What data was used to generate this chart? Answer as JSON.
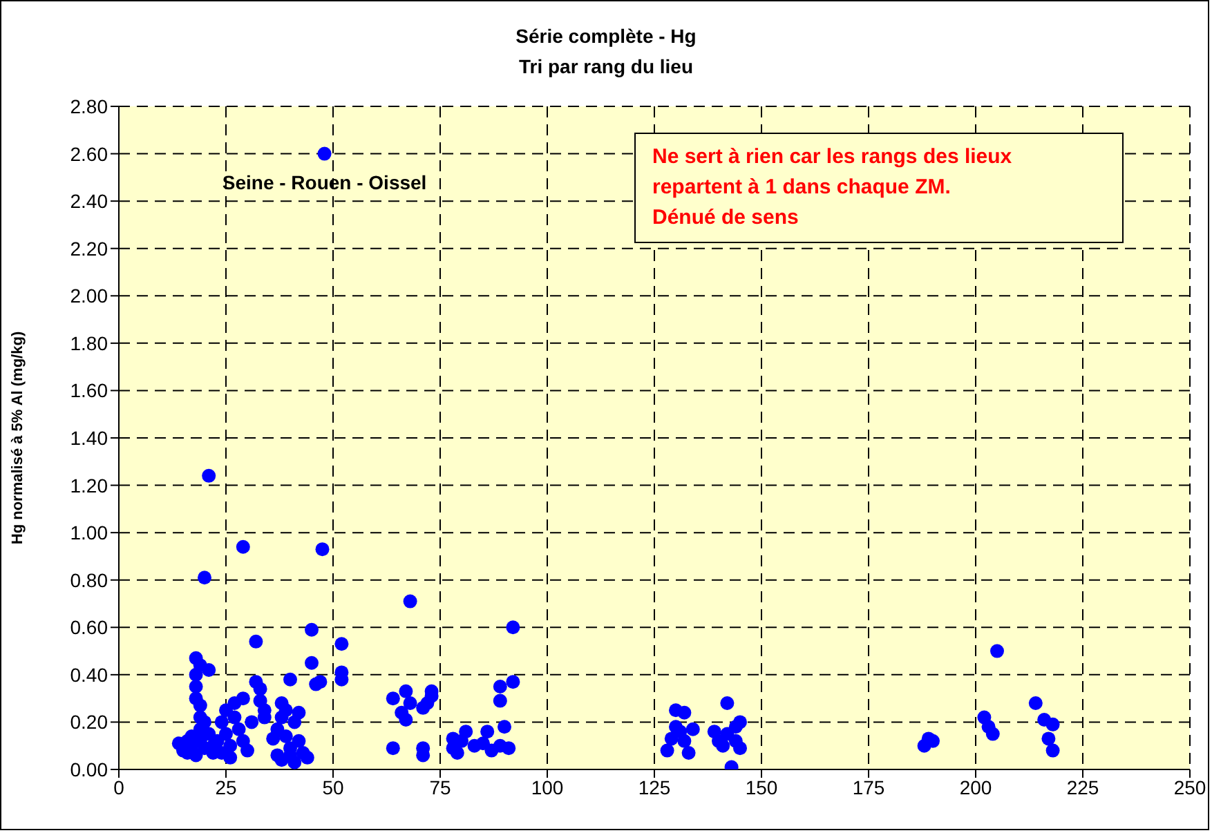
{
  "chart_data": {
    "type": "scatter",
    "title": "Série complète - Hg",
    "subtitle": "Tri par rang du lieu",
    "ylabel": "Hg normalisé à 5% Al (mg/kg)",
    "xlim": [
      0,
      250
    ],
    "xticks": [
      0,
      25,
      50,
      75,
      100,
      125,
      150,
      175,
      200,
      225,
      250
    ],
    "ylim": [
      0,
      2.8
    ],
    "yticks": [
      {
        "value": 0,
        "label": "0.00"
      },
      {
        "value": 0.2,
        "label": "0.20"
      },
      {
        "value": 0.4,
        "label": "0.40"
      },
      {
        "value": 0.6,
        "label": "0.60"
      },
      {
        "value": 0.8,
        "label": "0.80"
      },
      {
        "value": 1,
        "label": "1.00"
      },
      {
        "value": 1.2,
        "label": "1.20"
      },
      {
        "value": 1.4,
        "label": "1.40"
      },
      {
        "value": 1.6,
        "label": "1.60"
      },
      {
        "value": 1.8,
        "label": "1.80"
      },
      {
        "value": 2,
        "label": "2.00"
      },
      {
        "value": 2.2,
        "label": "2.20"
      },
      {
        "value": 2.4,
        "label": "2.40"
      },
      {
        "value": 2.6,
        "label": "2.60"
      },
      {
        "value": 2.8,
        "label": "2.80"
      }
    ],
    "grid": true,
    "marker": "circle",
    "legend": false,
    "annotations": [
      {
        "text": "Seine - Rouen - Oissel",
        "x": 48,
        "y": 2.6
      },
      "Ne sert à rien car les rangs des lieux repartent à 1 dans chaque ZM.\nDénué de sens"
    ],
    "series": [
      {
        "color": "#0000ff",
        "x": [
          48,
          21,
          20,
          29,
          47.5,
          32,
          45,
          52,
          68,
          92,
          205,
          14,
          15,
          16,
          16,
          17,
          17,
          18,
          18,
          18,
          18,
          18,
          19,
          19,
          19,
          19,
          19,
          20,
          20,
          21,
          21,
          22,
          22,
          23,
          24,
          24,
          25,
          25,
          26,
          26,
          27,
          27,
          28,
          29,
          29,
          30,
          31,
          32,
          33,
          33,
          34,
          34,
          36,
          37,
          37,
          38,
          38,
          38,
          39,
          39,
          40,
          40,
          40,
          41,
          41,
          42,
          42,
          43,
          44,
          45,
          46,
          47,
          52,
          52,
          64,
          64,
          66,
          67,
          67,
          68,
          71,
          71,
          71,
          72,
          73,
          73,
          78,
          78,
          79,
          80,
          81,
          83,
          85,
          86,
          87,
          89,
          89,
          89,
          90,
          91,
          92,
          128,
          129,
          130,
          130,
          131,
          132,
          132,
          133,
          134,
          139,
          140,
          141,
          142,
          142,
          143,
          144,
          144,
          145,
          145,
          188,
          189,
          190,
          202,
          203,
          204,
          214,
          216,
          217,
          218,
          218
        ],
        "values": [
          2.6,
          1.24,
          0.81,
          0.94,
          0.93,
          0.54,
          0.59,
          0.53,
          0.71,
          0.6,
          0.5,
          0.11,
          0.08,
          0.12,
          0.07,
          0.1,
          0.14,
          0.06,
          0.47,
          0.4,
          0.35,
          0.3,
          0.44,
          0.27,
          0.22,
          0.17,
          0.12,
          0.09,
          0.2,
          0.42,
          0.15,
          0.1,
          0.07,
          0.12,
          0.2,
          0.07,
          0.15,
          0.25,
          0.1,
          0.05,
          0.28,
          0.22,
          0.17,
          0.12,
          0.3,
          0.08,
          0.2,
          0.37,
          0.34,
          0.29,
          0.25,
          0.22,
          0.13,
          0.06,
          0.17,
          0.28,
          0.22,
          0.04,
          0.25,
          0.14,
          0.38,
          0.09,
          0.06,
          0.2,
          0.03,
          0.24,
          0.12,
          0.07,
          0.05,
          0.45,
          0.36,
          0.37,
          0.41,
          0.38,
          0.09,
          0.3,
          0.24,
          0.33,
          0.21,
          0.28,
          0.09,
          0.06,
          0.26,
          0.28,
          0.31,
          0.33,
          0.09,
          0.13,
          0.07,
          0.12,
          0.16,
          0.1,
          0.11,
          0.16,
          0.08,
          0.1,
          0.35,
          0.29,
          0.18,
          0.09,
          0.37,
          0.08,
          0.13,
          0.18,
          0.25,
          0.16,
          0.24,
          0.12,
          0.07,
          0.17,
          0.16,
          0.12,
          0.1,
          0.28,
          0.15,
          0.01,
          0.18,
          0.12,
          0.2,
          0.09,
          0.1,
          0.13,
          0.12,
          0.22,
          0.18,
          0.15,
          0.28,
          0.21,
          0.13,
          0.19,
          0.08
        ]
      }
    ]
  }
}
